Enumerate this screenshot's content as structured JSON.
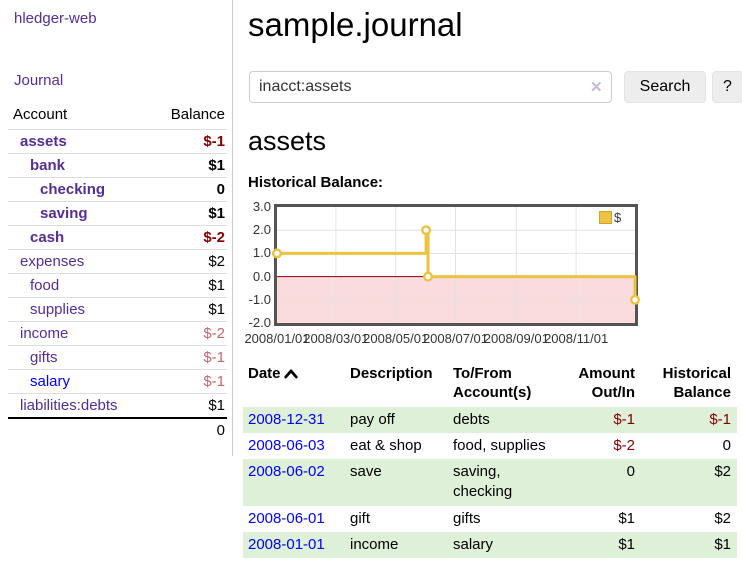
{
  "app": {
    "title": "hledger-web"
  },
  "nav": {
    "journal_label": "Journal"
  },
  "sidebar": {
    "header": {
      "account": "Account",
      "balance": "Balance"
    },
    "accounts": [
      {
        "name": "assets",
        "indent": 1,
        "bold": true,
        "balance": "$-1",
        "balance_style": "neg",
        "link_style": "purple"
      },
      {
        "name": "bank",
        "indent": 2,
        "bold": true,
        "balance": "$1",
        "balance_style": "pos",
        "link_style": "purple"
      },
      {
        "name": "checking",
        "indent": 3,
        "bold": true,
        "balance": "0",
        "balance_style": "pos",
        "link_style": "purple"
      },
      {
        "name": "saving",
        "indent": 3,
        "bold": true,
        "balance": "$1",
        "balance_style": "pos",
        "link_style": "purple"
      },
      {
        "name": "cash",
        "indent": 2,
        "bold": true,
        "balance": "$-2",
        "balance_style": "neg",
        "link_style": "purple"
      },
      {
        "name": "expenses",
        "indent": 1,
        "bold": false,
        "balance": "$2",
        "balance_style": "pos",
        "link_style": "purple"
      },
      {
        "name": "food",
        "indent": 2,
        "bold": false,
        "balance": "$1",
        "balance_style": "pos",
        "link_style": "purple"
      },
      {
        "name": "supplies",
        "indent": 2,
        "bold": false,
        "balance": "$1",
        "balance_style": "pos",
        "link_style": "purple"
      },
      {
        "name": "income",
        "indent": 1,
        "bold": false,
        "balance": "$-2",
        "balance_style": "negdim",
        "link_style": "purple"
      },
      {
        "name": "gifts",
        "indent": 2,
        "bold": false,
        "balance": "$-1",
        "balance_style": "negdim",
        "link_style": "purple"
      },
      {
        "name": "salary",
        "indent": 2,
        "bold": false,
        "balance": "$-1",
        "balance_style": "negdim",
        "link_style": "blue"
      },
      {
        "name": "liabilities:debts",
        "indent": 1,
        "bold": false,
        "balance": "$1",
        "balance_style": "pos",
        "link_style": "purple"
      }
    ],
    "total": "0"
  },
  "main": {
    "title": "sample.journal",
    "search": {
      "value": "inacct:assets",
      "clear_icon": "✕",
      "button_label": "Search",
      "help_label": "?"
    },
    "account_heading": "assets",
    "chart_heading": "Historical Balance:"
  },
  "chart_data": {
    "type": "line",
    "title": "Historical Balance:",
    "step": true,
    "x_range": [
      "2008-01-01",
      "2008-12-31"
    ],
    "ylim": [
      -2,
      3
    ],
    "yticks": [
      3.0,
      2.0,
      1.0,
      0.0,
      -1.0,
      -2.0
    ],
    "xticks": [
      "2008/01/01",
      "2008/03/01",
      "2008/05/01",
      "2008/07/01",
      "2008/09/01",
      "2008/11/01"
    ],
    "series": [
      {
        "name": "$",
        "color": "#EDC240",
        "points": [
          {
            "date": "2008-01-01",
            "value": 1
          },
          {
            "date": "2008-06-01",
            "value": 2
          },
          {
            "date": "2008-06-03",
            "value": 0
          },
          {
            "date": "2008-12-31",
            "value": -1
          }
        ]
      }
    ],
    "legend": {
      "label": "$",
      "position": "top-right"
    },
    "grid": true,
    "colors": {
      "line": "#EDC240",
      "marker_fill": "#ffffff",
      "negative_region": "#fadcdc",
      "zero_line": "#8B0000",
      "gridline": "#e2e2e2",
      "border": "#545454"
    }
  },
  "register_table": {
    "headers": {
      "date": "Date",
      "description": "Description",
      "tofrom_line1": "To/From",
      "tofrom_line2": "Account(s)",
      "amount_line1": "Amount",
      "amount_line2": "Out/In",
      "balance_line1": "Historical",
      "balance_line2": "Balance"
    },
    "sort": {
      "column": "date",
      "direction": "ascending"
    },
    "rows": [
      {
        "date": "2008-12-31",
        "description": "pay off",
        "accounts": "debts",
        "amount": "$-1",
        "amount_style": "neg",
        "balance": "$-1",
        "balance_style": "neg"
      },
      {
        "date": "2008-06-03",
        "description": "eat & shop",
        "accounts": "food, supplies",
        "amount": "$-2",
        "amount_style": "neg",
        "balance": "0",
        "balance_style": "pos"
      },
      {
        "date": "2008-06-02",
        "description": "save",
        "accounts": "saving, checking",
        "amount": "0",
        "amount_style": "pos",
        "balance": "$2",
        "balance_style": "pos"
      },
      {
        "date": "2008-06-01",
        "description": "gift",
        "accounts": "gifts",
        "amount": "$1",
        "amount_style": "pos",
        "balance": "$2",
        "balance_style": "pos"
      },
      {
        "date": "2008-01-01",
        "description": "income",
        "accounts": "salary",
        "amount": "$1",
        "amount_style": "pos",
        "balance": "$1",
        "balance_style": "pos"
      }
    ]
  },
  "colors": {
    "link_purple": "#542E91",
    "link_blue": "#0000EE",
    "negative_dark": "#800000",
    "negative_dim": "#C0696E",
    "row_green": "#dff0d8"
  }
}
